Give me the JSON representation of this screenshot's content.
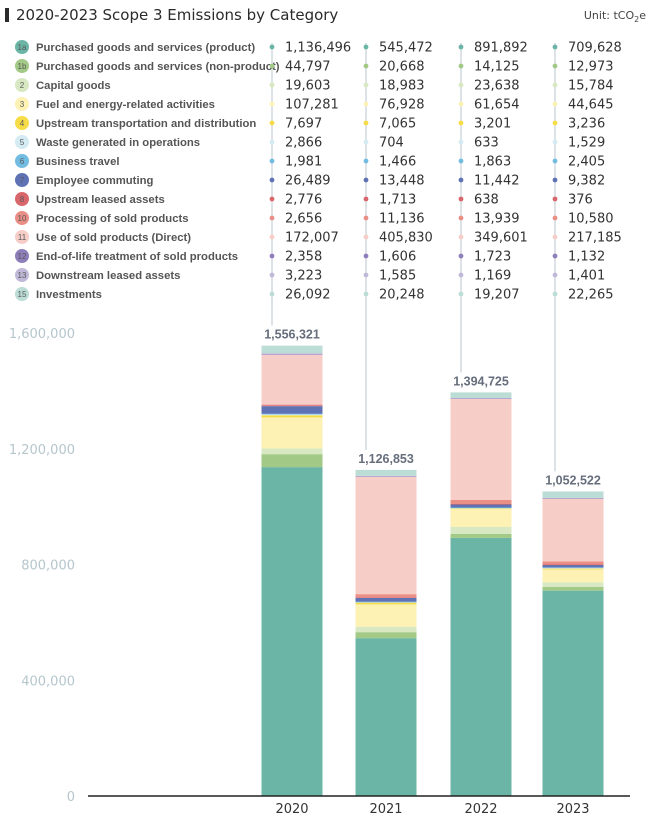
{
  "header": {
    "title": "2020-2023 Scope 3 Emissions by Category",
    "unit_prefix": "Unit: tCO",
    "unit_sub": "2",
    "unit_suffix": "e"
  },
  "chart_data": {
    "type": "bar",
    "stacked": true,
    "title": "2020-2023 Scope 3 Emissions by Category",
    "unit": "tCO2e",
    "categories": [
      "2020",
      "2021",
      "2022",
      "2023"
    ],
    "ylim": [
      0,
      1600000
    ],
    "yticks": [
      0,
      400000,
      800000,
      1200000,
      1600000
    ],
    "ytick_labels": [
      "0",
      "400,000",
      "800,000",
      "1,200,000",
      "1,600,000"
    ],
    "totals": [
      1556321,
      1126853,
      1394725,
      1052522
    ],
    "total_labels": [
      "1,556,321",
      "1,126,853",
      "1,394,725",
      "1,052,522"
    ],
    "series": [
      {
        "code": "1a",
        "name": "Purchased goods and services (product)",
        "color": "#6ab5a5",
        "values": [
          1136496,
          545472,
          891892,
          709628
        ],
        "labels": [
          "1,136,496",
          "545,472",
          "891,892",
          "709,628"
        ]
      },
      {
        "code": "1b",
        "name": "Purchased goods and services (non-product)",
        "color": "#a2ca86",
        "values": [
          44797,
          20668,
          14125,
          12973
        ],
        "labels": [
          "44,797",
          "20,668",
          "14,125",
          "12,973"
        ]
      },
      {
        "code": "2",
        "name": "Capital goods",
        "color": "#d7e8c2",
        "values": [
          19603,
          18983,
          23638,
          15784
        ],
        "labels": [
          "19,603",
          "18,983",
          "23,638",
          "15,784"
        ]
      },
      {
        "code": "3",
        "name": "Fuel and energy-related activities",
        "color": "#fdf2b4",
        "values": [
          107281,
          76928,
          61654,
          44645
        ],
        "labels": [
          "107,281",
          "76,928",
          "61,654",
          "44,645"
        ]
      },
      {
        "code": "4",
        "name": "Upstream transportation and distribution",
        "color": "#f6dc47",
        "values": [
          7697,
          7065,
          3201,
          3236
        ],
        "labels": [
          "7,697",
          "7,065",
          "3,201",
          "3,236"
        ]
      },
      {
        "code": "5",
        "name": "Waste generated in operations",
        "color": "#d4ebf4",
        "values": [
          2866,
          704,
          633,
          1529
        ],
        "labels": [
          "2,866",
          "704",
          "633",
          "1,529"
        ]
      },
      {
        "code": "6",
        "name": "Business travel",
        "color": "#72bce2",
        "values": [
          1981,
          1466,
          1863,
          2405
        ],
        "labels": [
          "1,981",
          "1,466",
          "1,863",
          "2,405"
        ]
      },
      {
        "code": "7",
        "name": "Employee commuting",
        "color": "#5f73b4",
        "values": [
          26489,
          13448,
          11442,
          9382
        ],
        "labels": [
          "26,489",
          "13,448",
          "11,442",
          "9,382"
        ]
      },
      {
        "code": "8",
        "name": "Upstream leased assets",
        "color": "#d8666b",
        "values": [
          2776,
          1713,
          638,
          376
        ],
        "labels": [
          "2,776",
          "1,713",
          "638",
          "376"
        ]
      },
      {
        "code": "10",
        "name": "Processing of sold products",
        "color": "#e98f86",
        "values": [
          2656,
          11136,
          13939,
          10580
        ],
        "labels": [
          "2,656",
          "11,136",
          "13,939",
          "10,580"
        ]
      },
      {
        "code": "11",
        "name": "Use of sold products (Direct)",
        "color": "#f7cdc7",
        "values": [
          172007,
          405830,
          349601,
          217185
        ],
        "labels": [
          "172,007",
          "405,830",
          "349,601",
          "217,185"
        ]
      },
      {
        "code": "12",
        "name": "End-of-life treatment of sold products",
        "color": "#8e7fbb",
        "values": [
          2358,
          1606,
          1723,
          1132
        ],
        "labels": [
          "2,358",
          "1,606",
          "1,723",
          "1,132"
        ]
      },
      {
        "code": "13",
        "name": "Downstream leased assets",
        "color": "#c1b9d8",
        "values": [
          3223,
          1585,
          1169,
          1401
        ],
        "labels": [
          "3,223",
          "1,585",
          "1,169",
          "1,401"
        ]
      },
      {
        "code": "15",
        "name": "Investments",
        "color": "#bcddd6",
        "values": [
          26092,
          20248,
          19207,
          22265
        ],
        "labels": [
          "26,092",
          "20,248",
          "19,207",
          "22,265"
        ]
      }
    ]
  }
}
